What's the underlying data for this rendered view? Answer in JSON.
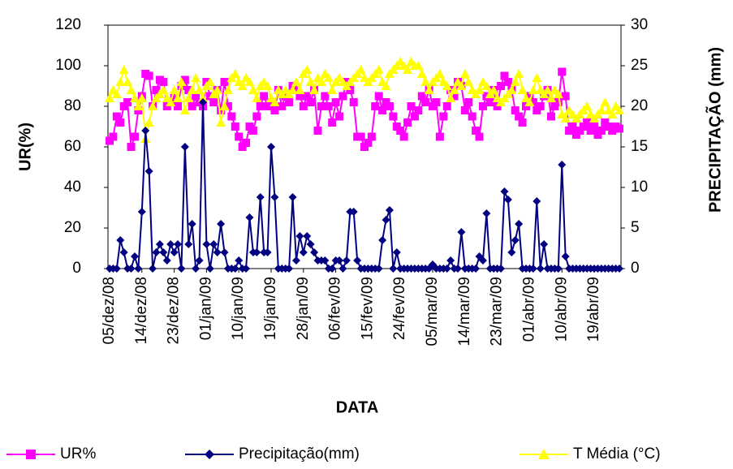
{
  "chart_data": {
    "type": "line",
    "x_label": "DATA",
    "y_label": "UR(%)",
    "y2_label": "PRECIPITAÇÃO (mm)",
    "ylim": [
      0,
      120
    ],
    "yticks": [
      0,
      20,
      40,
      60,
      80,
      100,
      120
    ],
    "y2lim": [
      0,
      30
    ],
    "y2ticks": [
      0,
      5,
      10,
      15,
      20,
      25,
      30
    ],
    "legend": "bottom",
    "categories": [
      "05/dez/08",
      null,
      null,
      null,
      null,
      null,
      null,
      null,
      null,
      "14/dez/08",
      null,
      null,
      null,
      null,
      null,
      null,
      null,
      null,
      "23/dez/08",
      null,
      null,
      null,
      null,
      null,
      null,
      null,
      null,
      "01/jan/09",
      null,
      null,
      null,
      null,
      null,
      null,
      null,
      null,
      "10/jan/09",
      null,
      null,
      null,
      null,
      null,
      null,
      null,
      null,
      "19/jan/09",
      null,
      null,
      null,
      null,
      null,
      null,
      null,
      null,
      "28/jan/09",
      null,
      null,
      null,
      null,
      null,
      null,
      null,
      null,
      "06/fev/09",
      null,
      null,
      null,
      null,
      null,
      null,
      null,
      null,
      "15/fev/09",
      null,
      null,
      null,
      null,
      null,
      null,
      null,
      null,
      "24/fev/09",
      null,
      null,
      null,
      null,
      null,
      null,
      null,
      null,
      "05/mar/09",
      null,
      null,
      null,
      null,
      null,
      null,
      null,
      null,
      "14/mar/09",
      null,
      null,
      null,
      null,
      null,
      null,
      null,
      null,
      "23/mar/09",
      null,
      null,
      null,
      null,
      null,
      null,
      null,
      null,
      "01/abr/09",
      null,
      null,
      null,
      null,
      null,
      null,
      null,
      null,
      "10/abr/09",
      null,
      null,
      null,
      null,
      null,
      null,
      null,
      null,
      "19/abr/09",
      null,
      null,
      null,
      null,
      null,
      null,
      null
    ],
    "series": [
      {
        "name": "UR%",
        "color": "#ff00ff",
        "marker": "square",
        "values": [
          63,
          65,
          75,
          72,
          80,
          82,
          60,
          65,
          78,
          85,
          96,
          95,
          80,
          88,
          93,
          92,
          80,
          82,
          85,
          80,
          90,
          93,
          88,
          80,
          85,
          82,
          80,
          92,
          85,
          82,
          88,
          78,
          92,
          80,
          75,
          70,
          65,
          60,
          62,
          70,
          68,
          75,
          80,
          85,
          80,
          82,
          78,
          88,
          80,
          85,
          82,
          90,
          88,
          85,
          80,
          85,
          82,
          88,
          68,
          80,
          85,
          80,
          72,
          82,
          75,
          85,
          92,
          88,
          82,
          65,
          65,
          60,
          62,
          65,
          80,
          85,
          78,
          82,
          80,
          75,
          70,
          68,
          65,
          72,
          80,
          75,
          78,
          85,
          82,
          88,
          80,
          82,
          65,
          75,
          80,
          88,
          85,
          92,
          90,
          78,
          82,
          75,
          68,
          65,
          80,
          85,
          82,
          88,
          80,
          90,
          95,
          92,
          88,
          78,
          75,
          72,
          80,
          85,
          82,
          78,
          80,
          85,
          88,
          75,
          80,
          82,
          97,
          85,
          68,
          70,
          66,
          68,
          70,
          72,
          68,
          70,
          66,
          68,
          72,
          70,
          68,
          70,
          69
        ]
      },
      {
        "name": "Precipitação(mm)",
        "color": "#000080",
        "marker": "diamond",
        "axis": "y2",
        "values": [
          0,
          0,
          0,
          3.5,
          2,
          0,
          0,
          1.5,
          0,
          7,
          17,
          12,
          0,
          2,
          3,
          2,
          1,
          3,
          2,
          3,
          0,
          15,
          3,
          5.5,
          0,
          1,
          20.5,
          3,
          0,
          3,
          2,
          5.5,
          2,
          0,
          0,
          0,
          1,
          0,
          0,
          6.3,
          2,
          2,
          8.8,
          2,
          2,
          15,
          8.8,
          0,
          0,
          0,
          0,
          8.8,
          1,
          4,
          2,
          4,
          3,
          2,
          1,
          1,
          1,
          0,
          0,
          1,
          1,
          0,
          1,
          7,
          7,
          1,
          0,
          0,
          0,
          0,
          0,
          0,
          3.5,
          6,
          7.2,
          0,
          2,
          0,
          0,
          0,
          0,
          0,
          0,
          0,
          0,
          0,
          0.5,
          0,
          0,
          0,
          0,
          1,
          0,
          0,
          4.5,
          0,
          0,
          0,
          0,
          1.5,
          1,
          6.8,
          0,
          0,
          0,
          0,
          9.5,
          8.5,
          2,
          3.5,
          5.5,
          0,
          0,
          0,
          0,
          8.3,
          0,
          3,
          0,
          0,
          0,
          0,
          12.8,
          1.5,
          0,
          0,
          0,
          0,
          0,
          0,
          0,
          0,
          0,
          0,
          0,
          0,
          0,
          0,
          0
        ]
      },
      {
        "name": "T Média (°C)",
        "color": "#ffff00",
        "marker": "triangle",
        "axis": "y2",
        "values": [
          21,
          22,
          21.5,
          23,
          24.5,
          23,
          22,
          21,
          20,
          21,
          16,
          18,
          20,
          21,
          21.5,
          22,
          21,
          20.5,
          22,
          21,
          23,
          19.5,
          21,
          22,
          23.5,
          22,
          21,
          22.5,
          23,
          21.5,
          22,
          18,
          20,
          22,
          23.5,
          24,
          23,
          22.5,
          23.5,
          23,
          22,
          21,
          22.5,
          23,
          22.5,
          21,
          20.5,
          22,
          21.5,
          22,
          21.5,
          22,
          23,
          22,
          24,
          24.5,
          23,
          22,
          23.5,
          23,
          24,
          23.5,
          22,
          23,
          23.5,
          23,
          22.5,
          23,
          23.5,
          24,
          24.5,
          23.5,
          23,
          23.5,
          24,
          24.5,
          23,
          22.5,
          24,
          24.5,
          25,
          25.5,
          25,
          24.5,
          25.5,
          25,
          25,
          24,
          23,
          22,
          23,
          23.5,
          24,
          23,
          22.5,
          21,
          22,
          23,
          22.5,
          24,
          23,
          22,
          21.5,
          22,
          23,
          22.5,
          21.5,
          22,
          21,
          20.5,
          21,
          21.5,
          22,
          23,
          24,
          22,
          21,
          20.5,
          22,
          23.5,
          22,
          21.5,
          22,
          21,
          22,
          21.5,
          19,
          18.5,
          19.5,
          19,
          18.5,
          19,
          19.5,
          20,
          19,
          18.5,
          19,
          19.5,
          20.5,
          19.5,
          19,
          20,
          19.5
        ]
      }
    ]
  }
}
